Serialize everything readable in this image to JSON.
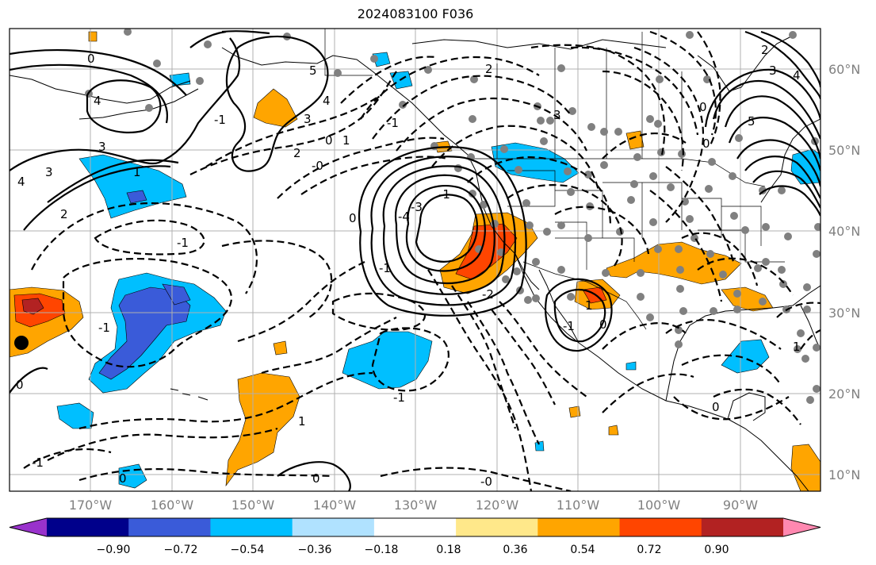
{
  "title": "2024083100 F036",
  "map": {
    "lat_labels": [
      "60°N",
      "50°N",
      "40°N",
      "30°N",
      "20°N",
      "10°N"
    ],
    "lon_labels": [
      "170°W",
      "160°W",
      "150°W",
      "140°W",
      "130°W",
      "120°W",
      "110°W",
      "100°W",
      "90°W"
    ],
    "contour_labels": [
      "0",
      "4",
      "3",
      "3",
      "4",
      "2",
      "1",
      "-1",
      "5",
      "3",
      "4",
      "2",
      "-0",
      "0",
      "1",
      "-1",
      "2",
      "3",
      "0",
      "5",
      "3",
      "4",
      "2",
      "-1",
      "-4",
      "-3",
      "-1",
      "0",
      "-1",
      "-2",
      "-1",
      "1",
      "0",
      "0",
      "-1",
      "1",
      "-1",
      "0",
      "0",
      "-0",
      "0",
      "-1",
      "1",
      "0"
    ]
  },
  "colorbar": {
    "colors": [
      "#9932cc",
      "#00008b",
      "#3a5bd9",
      "#00bfff",
      "#b0e2ff",
      "#ffffff",
      "#ffe88a",
      "#ffa500",
      "#ff4500",
      "#b22222",
      "#ff88b0"
    ],
    "tick_labels": [
      "−0.90",
      "−0.72",
      "−0.54",
      "−0.36",
      "−0.18",
      "0.18",
      "0.36",
      "0.54",
      "0.72",
      "0.90"
    ]
  }
}
